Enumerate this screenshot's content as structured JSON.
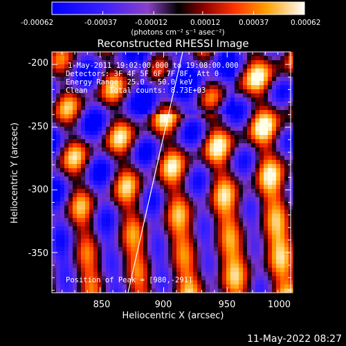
{
  "title": "Reconstructed RHESSI Image",
  "colorbar": {
    "ticks": [
      "-0.00062",
      "-0.00037",
      "-0.00012",
      "0.00012",
      "0.00037",
      "0.00062"
    ],
    "unit_label": "(photons cm⁻² s⁻¹ asec⁻²)",
    "range": [
      -0.00062,
      0.00062
    ]
  },
  "annotations": {
    "time": "1-May-2011 19:02:00.000 to 19:08:00.000",
    "detectors": "Detectors: 3F 4F 5F 6F 7F 8F, Att 0",
    "energy": "Energy Range: 25.0 - 50.0 keV",
    "clean": "Clean     Total counts: 8.73E+03",
    "peak": "Position of Peak = [980,-291]"
  },
  "axes": {
    "xlabel": "Heliocentric X (arcsec)",
    "ylabel": "Heliocentric Y (arcsec)",
    "xticks": [
      "850",
      "900",
      "950",
      "1000"
    ],
    "yticks": [
      "-200",
      "-250",
      "-300",
      "-350"
    ],
    "xlim": [
      812,
      1000
    ],
    "ylim": [
      -382,
      -190
    ]
  },
  "chart_data": {
    "type": "heatmap",
    "title": "Reconstructed RHESSI Image",
    "xlabel": "Heliocentric X (arcsec)",
    "ylabel": "Heliocentric Y (arcsec)",
    "xlim": [
      812,
      1000
    ],
    "ylim": [
      -382,
      -190
    ],
    "colorbar_range": [
      -0.00062,
      0.00062
    ],
    "peak": [
      980,
      -291
    ]
  },
  "timestamp": "11-May-2022 08:27"
}
